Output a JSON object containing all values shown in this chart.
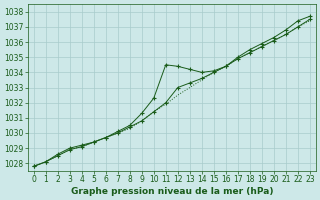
{
  "x": [
    0,
    1,
    2,
    3,
    4,
    5,
    6,
    7,
    8,
    9,
    10,
    11,
    12,
    13,
    14,
    15,
    16,
    17,
    18,
    19,
    20,
    21,
    22,
    23
  ],
  "line1": [
    1027.8,
    1028.1,
    1028.6,
    1029.0,
    1029.2,
    1029.4,
    1029.7,
    1030.1,
    1030.5,
    1031.3,
    1032.3,
    1034.5,
    1034.4,
    1034.2,
    1034.0,
    1034.1,
    1034.4,
    1035.0,
    1035.5,
    1035.9,
    1036.3,
    1036.8,
    1037.4,
    1037.7
  ],
  "line2": [
    1027.8,
    1028.1,
    1028.5,
    1028.9,
    1029.1,
    1029.4,
    1029.7,
    1030.0,
    1030.4,
    1030.8,
    1031.4,
    1032.0,
    1033.0,
    1033.3,
    1033.6,
    1034.0,
    1034.4,
    1034.9,
    1035.3,
    1035.7,
    1036.1,
    1036.5,
    1037.0,
    1037.5
  ],
  "line3": [
    1027.8,
    1028.1,
    1028.5,
    1028.9,
    1029.1,
    1029.4,
    1029.7,
    1030.0,
    1030.3,
    1030.8,
    1031.4,
    1031.9,
    1032.5,
    1033.0,
    1033.5,
    1034.0,
    1034.4,
    1034.9,
    1035.3,
    1035.7,
    1036.1,
    1036.5,
    1037.0,
    1037.4
  ],
  "bg_color": "#cde8e8",
  "grid_color": "#a8cccc",
  "line_color": "#1a5c1a",
  "xlabel": "Graphe pression niveau de la mer (hPa)",
  "ylim": [
    1027.5,
    1038.5
  ],
  "yticks": [
    1028,
    1029,
    1030,
    1031,
    1032,
    1033,
    1034,
    1035,
    1036,
    1037,
    1038
  ],
  "xticks": [
    0,
    1,
    2,
    3,
    4,
    5,
    6,
    7,
    8,
    9,
    10,
    11,
    12,
    13,
    14,
    15,
    16,
    17,
    18,
    19,
    20,
    21,
    22,
    23
  ],
  "tick_fontsize": 5.5,
  "xlabel_fontsize": 6.5
}
